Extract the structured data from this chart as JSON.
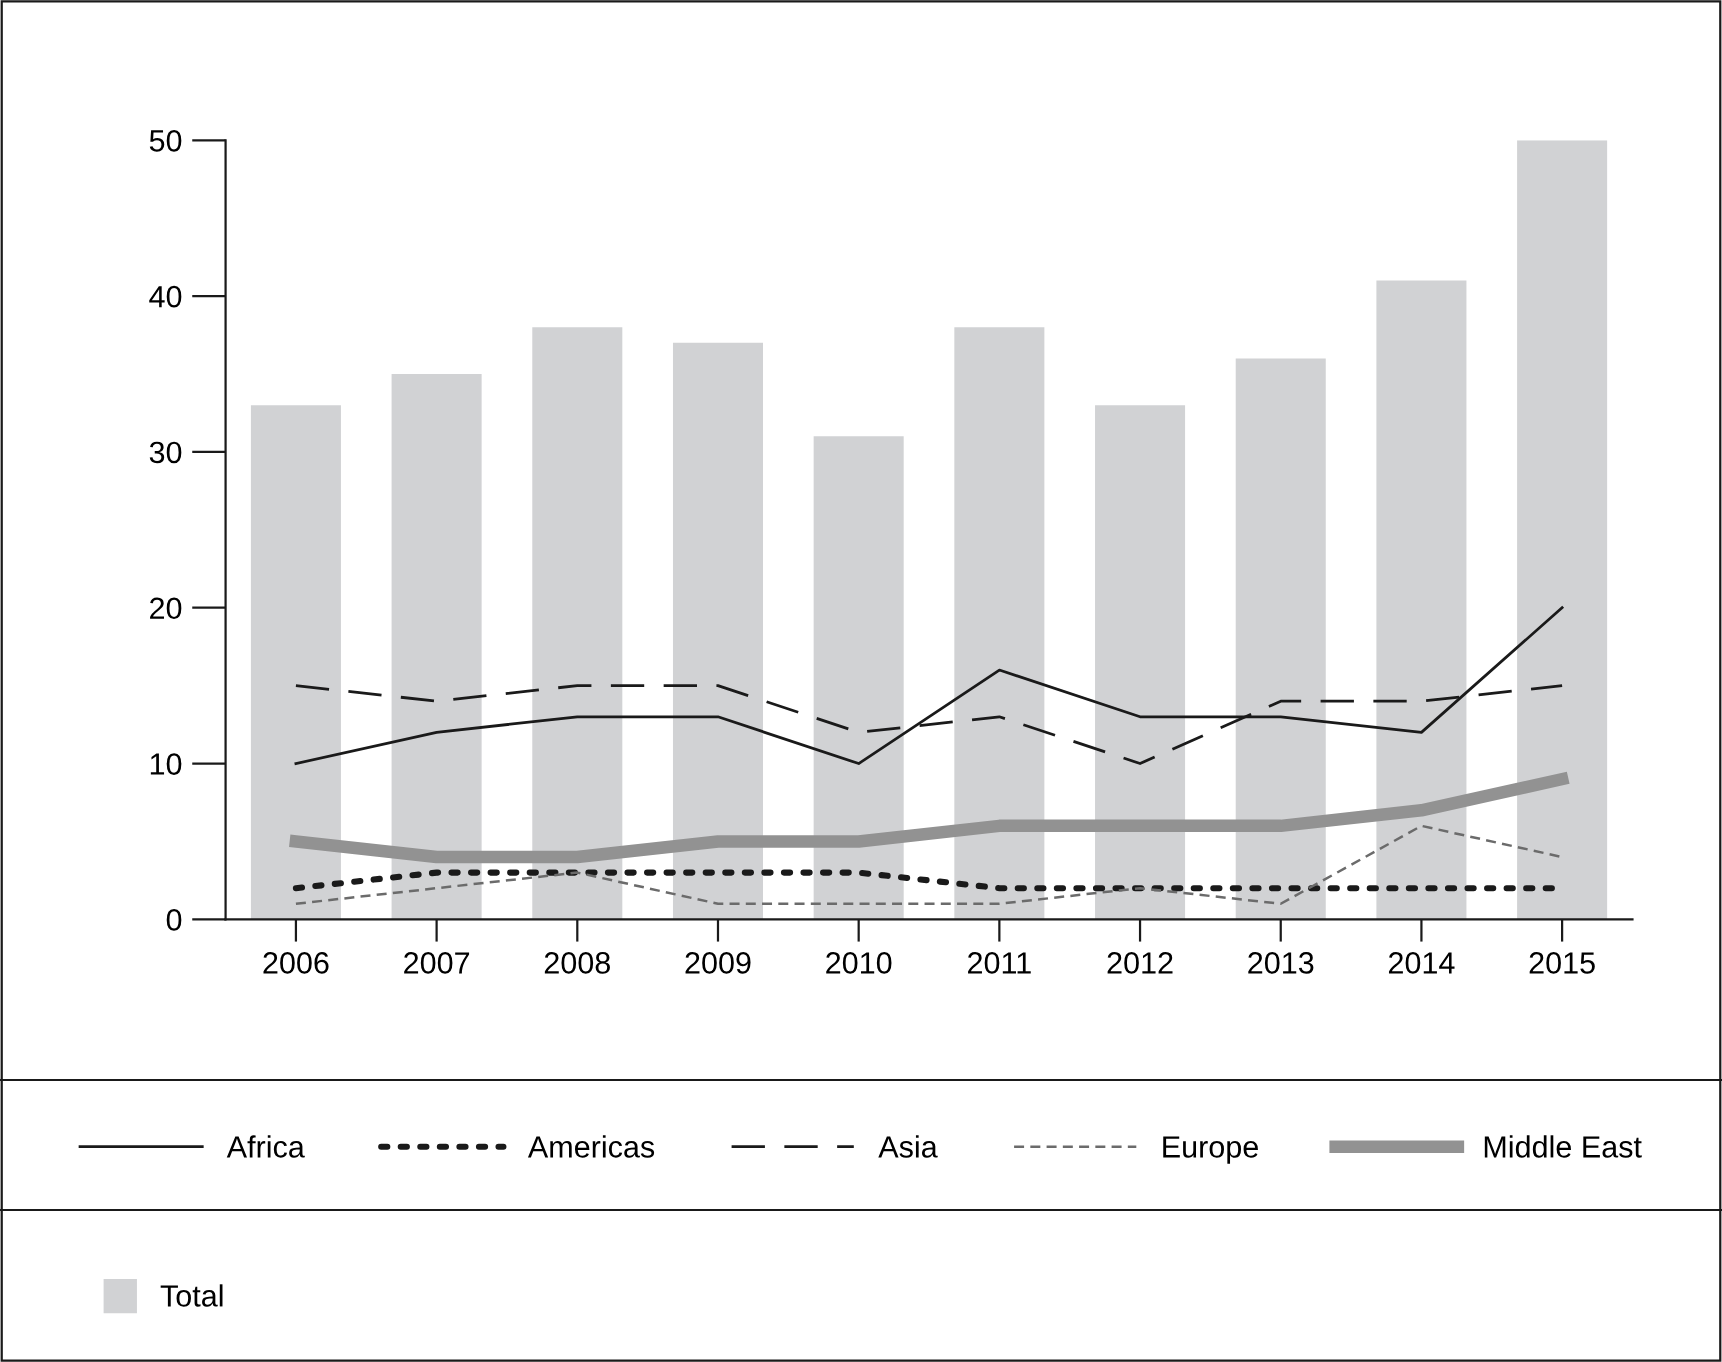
{
  "chart_data": {
    "type": "bar",
    "categories": [
      "2006",
      "2007",
      "2008",
      "2009",
      "2010",
      "2011",
      "2012",
      "2013",
      "2014",
      "2015"
    ],
    "ylim": [
      0,
      50
    ],
    "yticks": [
      0,
      10,
      20,
      30,
      40,
      50
    ],
    "grid": false,
    "legend": "bottom",
    "series": [
      {
        "name": "Total",
        "color": "#d1d2d4",
        "values": [
          33,
          35,
          38,
          37,
          31,
          38,
          33,
          36,
          41,
          50
        ]
      },
      {
        "name": "Africa",
        "type": "line",
        "color": "#1a1a1a",
        "line_style": "solid",
        "values": [
          10,
          12,
          13,
          13,
          10,
          16,
          13,
          13,
          12,
          20
        ]
      },
      {
        "name": "Americas",
        "type": "line",
        "color": "#1a1a1a",
        "line_style": "dotted",
        "values": [
          2,
          3,
          3,
          3,
          3,
          2,
          2,
          2,
          2,
          2
        ]
      },
      {
        "name": "Asia",
        "type": "line",
        "color": "#1a1a1a",
        "line_style": "dashed",
        "values": [
          15,
          14,
          15,
          15,
          12,
          13,
          10,
          14,
          14,
          15
        ]
      },
      {
        "name": "Europe",
        "type": "line",
        "color": "#6b6b6b",
        "line_style": "dashed",
        "values": [
          1,
          2,
          3,
          1,
          1,
          1,
          2,
          1,
          6,
          4
        ]
      },
      {
        "name": "Middle East",
        "type": "line",
        "color": "#929292",
        "line_style": "solid",
        "values": [
          5,
          4,
          4,
          5,
          5,
          6,
          6,
          6,
          7,
          9
        ]
      }
    ]
  }
}
